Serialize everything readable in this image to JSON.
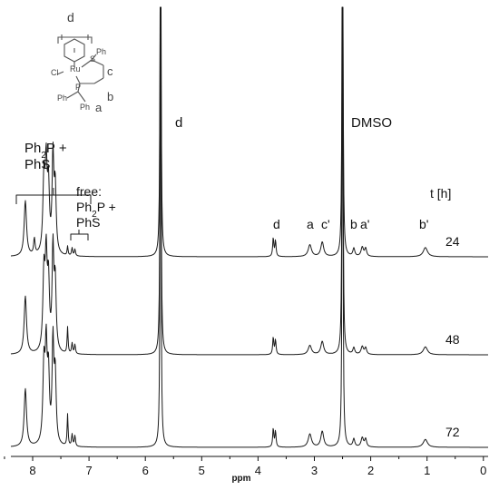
{
  "chart_data": {
    "type": "line",
    "xlabel": "ppm",
    "xlim": [
      8.5,
      0
    ],
    "x_reversed": true,
    "ticks": [
      8,
      7,
      6,
      5,
      4,
      3,
      2,
      1,
      0
    ],
    "series": [
      {
        "name": "24",
        "peaks": [
          {
            "ppm": 8.13,
            "height": 0.42,
            "width": 0.025
          },
          {
            "ppm": 7.97,
            "height": 0.12,
            "width": 0.015
          },
          {
            "ppm": 7.8,
            "height": 0.55,
            "width": 0.022
          },
          {
            "ppm": 7.76,
            "height": 0.62,
            "width": 0.02
          },
          {
            "ppm": 7.72,
            "height": 0.48,
            "width": 0.02
          },
          {
            "ppm": 7.64,
            "height": 0.72,
            "width": 0.018
          },
          {
            "ppm": 7.6,
            "height": 0.5,
            "width": 0.02
          },
          {
            "ppm": 7.38,
            "height": 0.07,
            "width": 0.01
          },
          {
            "ppm": 7.3,
            "height": 0.06,
            "width": 0.012
          },
          {
            "ppm": 7.25,
            "height": 0.05,
            "width": 0.012
          },
          {
            "ppm": 5.73,
            "height": 4.5,
            "width": 0.008
          },
          {
            "ppm": 3.73,
            "height": 0.14,
            "width": 0.012
          },
          {
            "ppm": 3.69,
            "height": 0.12,
            "width": 0.012
          },
          {
            "ppm": 3.08,
            "height": 0.09,
            "width": 0.035
          },
          {
            "ppm": 2.86,
            "height": 0.11,
            "width": 0.03
          },
          {
            "ppm": 2.5,
            "height": 4.5,
            "width": 0.008
          },
          {
            "ppm": 2.3,
            "height": 0.06,
            "width": 0.02
          },
          {
            "ppm": 2.15,
            "height": 0.07,
            "width": 0.025
          },
          {
            "ppm": 2.09,
            "height": 0.06,
            "width": 0.02
          },
          {
            "ppm": 1.03,
            "height": 0.07,
            "width": 0.045
          }
        ]
      },
      {
        "name": "48",
        "peaks": [
          {
            "ppm": 8.13,
            "height": 0.44,
            "width": 0.025
          },
          {
            "ppm": 7.8,
            "height": 0.58,
            "width": 0.022
          },
          {
            "ppm": 7.76,
            "height": 0.66,
            "width": 0.02
          },
          {
            "ppm": 7.72,
            "height": 0.5,
            "width": 0.02
          },
          {
            "ppm": 7.64,
            "height": 0.76,
            "width": 0.018
          },
          {
            "ppm": 7.6,
            "height": 0.52,
            "width": 0.02
          },
          {
            "ppm": 7.38,
            "height": 0.2,
            "width": 0.01
          },
          {
            "ppm": 7.3,
            "height": 0.08,
            "width": 0.012
          },
          {
            "ppm": 7.25,
            "height": 0.07,
            "width": 0.012
          },
          {
            "ppm": 5.73,
            "height": 4.5,
            "width": 0.008
          },
          {
            "ppm": 3.73,
            "height": 0.13,
            "width": 0.012
          },
          {
            "ppm": 3.69,
            "height": 0.11,
            "width": 0.012
          },
          {
            "ppm": 3.08,
            "height": 0.07,
            "width": 0.035
          },
          {
            "ppm": 2.86,
            "height": 0.1,
            "width": 0.03
          },
          {
            "ppm": 2.5,
            "height": 4.5,
            "width": 0.008
          },
          {
            "ppm": 2.3,
            "height": 0.05,
            "width": 0.02
          },
          {
            "ppm": 2.15,
            "height": 0.06,
            "width": 0.025
          },
          {
            "ppm": 2.09,
            "height": 0.05,
            "width": 0.02
          },
          {
            "ppm": 1.03,
            "height": 0.06,
            "width": 0.045
          }
        ]
      },
      {
        "name": "72",
        "peaks": [
          {
            "ppm": 8.13,
            "height": 0.44,
            "width": 0.025
          },
          {
            "ppm": 7.8,
            "height": 0.58,
            "width": 0.022
          },
          {
            "ppm": 7.76,
            "height": 0.68,
            "width": 0.02
          },
          {
            "ppm": 7.72,
            "height": 0.5,
            "width": 0.02
          },
          {
            "ppm": 7.64,
            "height": 0.76,
            "width": 0.018
          },
          {
            "ppm": 7.6,
            "height": 0.52,
            "width": 0.02
          },
          {
            "ppm": 7.38,
            "height": 0.24,
            "width": 0.01
          },
          {
            "ppm": 7.3,
            "height": 0.09,
            "width": 0.012
          },
          {
            "ppm": 7.25,
            "height": 0.08,
            "width": 0.012
          },
          {
            "ppm": 5.73,
            "height": 4.5,
            "width": 0.008
          },
          {
            "ppm": 3.73,
            "height": 0.14,
            "width": 0.012
          },
          {
            "ppm": 3.69,
            "height": 0.12,
            "width": 0.012
          },
          {
            "ppm": 3.08,
            "height": 0.1,
            "width": 0.035
          },
          {
            "ppm": 2.86,
            "height": 0.12,
            "width": 0.03
          },
          {
            "ppm": 2.5,
            "height": 4.5,
            "width": 0.008
          },
          {
            "ppm": 2.3,
            "height": 0.06,
            "width": 0.02
          },
          {
            "ppm": 2.15,
            "height": 0.07,
            "width": 0.025
          },
          {
            "ppm": 2.09,
            "height": 0.06,
            "width": 0.02
          },
          {
            "ppm": 1.03,
            "height": 0.06,
            "width": 0.045
          }
        ]
      }
    ],
    "time_header": "t [h]",
    "annotations": {
      "ph2p_phs_line1": "Ph",
      "ph2p_phs_sub": "2",
      "ph2p_phs_line1b": "P +",
      "ph2p_phs_line2": "PhS",
      "free_line1": "free:",
      "free_line2": "Ph",
      "free_line2_sub": "2",
      "free_line2b": "P +",
      "free_line3": "PhS",
      "d_top": "d",
      "dmso": "DMSO",
      "d_peak": "d",
      "a_peak": "a",
      "c_prime": "c'",
      "b_peak": "b",
      "a_prime": "a'",
      "b_prime": "b'"
    },
    "structure": {
      "d": "d",
      "cl": "Cl",
      "ru": "Ru",
      "s": "S",
      "ph_s": "Ph",
      "c": "c",
      "p": "P",
      "ph_p1": "Ph",
      "ph_p2": "Ph",
      "a": "a",
      "b": "b"
    },
    "colors": {
      "trace": "#1a1a1a",
      "structure": "#555555"
    }
  }
}
